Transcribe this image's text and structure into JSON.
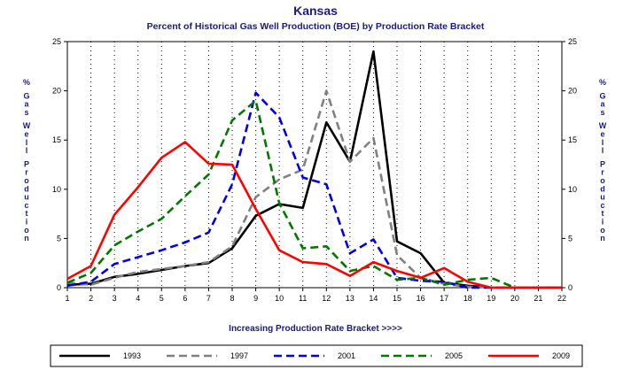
{
  "chart_data": {
    "type": "line",
    "title": "Kansas",
    "subtitle": "Percent of Historical Gas Well Production (BOE) by Production Rate Bracket",
    "xlabel": "Increasing Production Rate Bracket >>>>",
    "ylabel": "% Gas Well Production",
    "x": [
      1,
      2,
      3,
      4,
      5,
      6,
      7,
      8,
      9,
      10,
      11,
      12,
      13,
      14,
      15,
      16,
      17,
      18,
      19,
      20,
      21,
      22
    ],
    "xlim": [
      1,
      22
    ],
    "ylim": [
      0,
      25
    ],
    "yticks": [
      0,
      5,
      10,
      15,
      20,
      25
    ],
    "grid": "dotted",
    "legend_position": "bottom",
    "series": [
      {
        "name": "1993",
        "color": "#000000",
        "dash": "solid",
        "values": [
          0.3,
          0.4,
          1.1,
          1.4,
          1.8,
          2.2,
          2.5,
          4.0,
          7.3,
          8.5,
          8.1,
          16.8,
          12.8,
          24.0,
          4.7,
          3.5,
          0.5,
          0.2,
          0.0,
          0.0,
          0.0,
          0.0
        ]
      },
      {
        "name": "1997",
        "color": "#808080",
        "dash": "dashed",
        "values": [
          0.5,
          0.3,
          1.0,
          1.6,
          1.9,
          2.2,
          2.6,
          4.2,
          9.2,
          11.0,
          12.0,
          20.0,
          12.8,
          15.2,
          3.3,
          1.0,
          0.4,
          0.1,
          0.0,
          0.0,
          0.0,
          0.0
        ]
      },
      {
        "name": "2001",
        "color": "#0000e0",
        "dash": "dashed",
        "values": [
          0.2,
          0.6,
          2.4,
          3.1,
          3.8,
          4.6,
          5.6,
          10.5,
          19.8,
          17.3,
          11.2,
          10.5,
          3.5,
          4.9,
          1.0,
          0.7,
          0.6,
          0.0,
          0.0,
          0.0,
          0.0,
          0.0
        ]
      },
      {
        "name": "2005",
        "color": "#007800",
        "dash": "dashed",
        "values": [
          0.5,
          1.5,
          4.3,
          5.7,
          7.0,
          9.3,
          11.5,
          17.0,
          19.0,
          8.6,
          4.0,
          4.2,
          1.7,
          2.2,
          0.8,
          1.0,
          0.3,
          0.8,
          1.0,
          0.0,
          0.0,
          0.0
        ]
      },
      {
        "name": "2009",
        "color": "#ff0000",
        "dash": "solid",
        "values": [
          0.9,
          2.2,
          7.4,
          10.2,
          13.2,
          14.8,
          12.6,
          12.5,
          8.0,
          3.8,
          2.6,
          2.4,
          1.2,
          2.6,
          1.7,
          1.0,
          2.0,
          0.6,
          0.0,
          0.0,
          0.0,
          0.0
        ]
      }
    ]
  }
}
